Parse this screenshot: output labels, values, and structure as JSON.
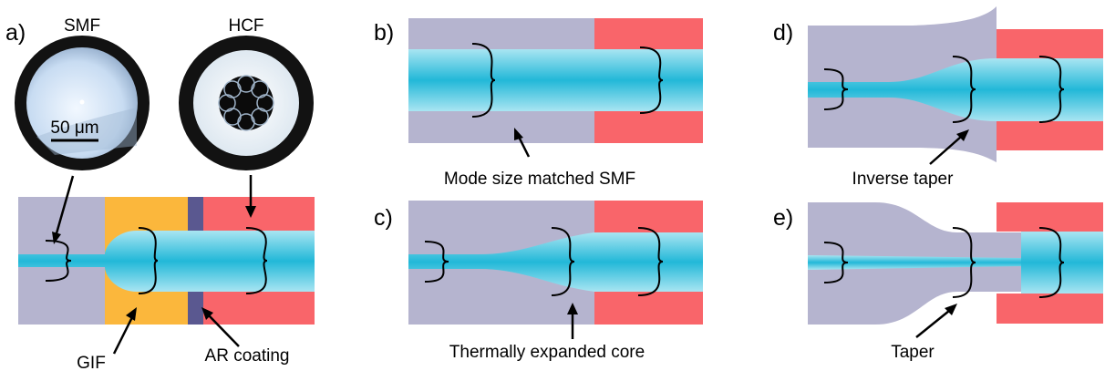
{
  "panels": {
    "a": {
      "letter": "a)",
      "smf_label": "SMF",
      "hcf_label": "HCF",
      "scale_bar_label": "50 μm",
      "gif_label": "GIF",
      "ar_label": "AR coating"
    },
    "b": {
      "letter": "b)",
      "caption": "Mode size matched SMF"
    },
    "c": {
      "letter": "c)",
      "caption": "Thermally expanded core"
    },
    "d": {
      "letter": "d)",
      "caption": "Inverse taper"
    },
    "e": {
      "letter": "e)",
      "caption": "Taper"
    }
  },
  "colors": {
    "cladding": "#b5b4cf",
    "hcf_jacket": "#f9656a",
    "gif": "#fbb73c",
    "ar_coating": "#5a5890",
    "mode_core": "#2bbfdd",
    "mode_edge": "#9fe2f0",
    "micro_ring": "#141414",
    "smf_face": "#dcebf8",
    "hcf_face": "#f4f8fb"
  }
}
